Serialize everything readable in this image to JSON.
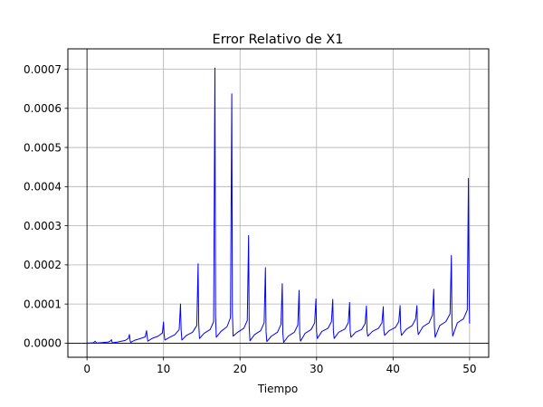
{
  "chart_data": {
    "type": "line",
    "title": "Error Relativo de X1",
    "xlabel": "Tiempo",
    "ylabel": "",
    "xlim": [
      -2.5,
      52.5
    ],
    "ylim": [
      -3.6e-05,
      0.000752
    ],
    "grid": true,
    "legend": "none",
    "x_ticks": [
      0,
      10,
      20,
      30,
      40,
      50
    ],
    "x_tick_labels": [
      "0",
      "10",
      "20",
      "30",
      "40",
      "50"
    ],
    "y_ticks": [
      0,
      0.0001,
      0.0002,
      0.0003,
      0.0004,
      0.0005,
      0.0006,
      0.0007
    ],
    "y_tick_labels": [
      "0.0000",
      "0.0001",
      "0.0002",
      "0.0003",
      "0.0004",
      "0.0005",
      "0.0006",
      "0.0007"
    ],
    "series": [
      {
        "color": "#0000ff",
        "x": [
          0.0,
          0.8,
          0.95,
          1.05,
          1.15,
          1.25,
          2.0,
          2.8,
          3.1,
          3.2,
          3.25,
          3.35,
          4.0,
          5.0,
          5.4,
          5.55,
          5.62,
          5.7,
          6.3,
          7.0,
          7.6,
          7.78,
          7.85,
          7.95,
          8.5,
          9.3,
          9.85,
          10.0,
          10.08,
          10.18,
          10.8,
          11.5,
          12.05,
          12.22,
          12.3,
          12.4,
          13.0,
          13.8,
          14.35,
          14.52,
          14.6,
          14.7,
          15.3,
          16.1,
          16.55,
          16.72,
          16.8,
          16.9,
          17.5,
          18.3,
          18.75,
          18.92,
          19.0,
          19.1,
          19.7,
          20.5,
          20.95,
          21.12,
          21.2,
          21.3,
          21.9,
          22.7,
          23.15,
          23.32,
          23.4,
          23.5,
          24.1,
          24.9,
          25.35,
          25.52,
          25.6,
          25.7,
          26.3,
          27.1,
          27.55,
          27.72,
          27.8,
          27.9,
          28.5,
          29.3,
          29.75,
          29.92,
          30.0,
          30.1,
          30.7,
          31.5,
          31.95,
          32.12,
          32.2,
          32.3,
          32.9,
          33.7,
          34.15,
          34.32,
          34.4,
          34.5,
          35.1,
          35.9,
          36.35,
          36.52,
          36.6,
          36.7,
          37.3,
          38.1,
          38.55,
          38.72,
          38.8,
          38.9,
          39.5,
          40.3,
          40.75,
          40.92,
          41.0,
          41.1,
          41.7,
          42.5,
          42.95,
          43.12,
          43.2,
          43.3,
          43.9,
          44.7,
          45.15,
          45.32,
          45.4,
          45.5,
          46.1,
          46.9,
          47.45,
          47.62,
          47.7,
          47.8,
          48.4,
          49.2,
          49.7,
          49.85,
          49.92,
          50.0
        ],
        "values": [
          0.0,
          1e-06,
          3e-06,
          5e-06,
          3e-06,
          5e-07,
          1.5e-06,
          3e-06,
          6e-06,
          9e-06,
          4e-06,
          1e-06,
          3e-06,
          7e-06,
          1.2e-05,
          2.2e-05,
          8e-06,
          2e-06,
          8e-06,
          1.2e-05,
          1.6e-05,
          3.2e-05,
          2e-05,
          5e-06,
          1.2e-05,
          1.8e-05,
          2.6e-05,
          5.4e-05,
          2.2e-05,
          8e-06,
          1.5e-05,
          2.2e-05,
          3.5e-05,
          0.0001,
          3.5e-05,
          8e-06,
          2e-05,
          2.8e-05,
          4.5e-05,
          0.000203,
          5e-05,
          1.2e-05,
          2.5e-05,
          3.5e-05,
          5.5e-05,
          0.000703,
          7e-05,
          1.5e-05,
          3e-05,
          4.2e-05,
          6.5e-05,
          0.000637,
          8e-05,
          1.8e-05,
          2.8e-05,
          3.8e-05,
          5.8e-05,
          0.000275,
          4e-05,
          6e-06,
          2.2e-05,
          3.2e-05,
          5.2e-05,
          0.000193,
          3e-05,
          4e-06,
          1.8e-05,
          2.8e-05,
          4.8e-05,
          0.000152,
          2.5e-05,
          2e-06,
          1.8e-05,
          2.8e-05,
          4.6e-05,
          0.000135,
          2.5e-05,
          5e-06,
          2.5e-05,
          3.5e-05,
          5.2e-05,
          0.000113,
          3e-05,
          1.2e-05,
          3e-05,
          3.8e-05,
          5.5e-05,
          0.000112,
          3.2e-05,
          1.2e-05,
          2.8e-05,
          3.6e-05,
          5.2e-05,
          0.000104,
          3e-05,
          1.5e-05,
          2.8e-05,
          3.5e-05,
          5e-05,
          9.5e-05,
          3e-05,
          1.8e-05,
          3e-05,
          3.8e-05,
          5.2e-05,
          9.3e-05,
          3.2e-05,
          2e-05,
          3.2e-05,
          4e-05,
          5.5e-05,
          9.6e-05,
          3.5e-05,
          2e-05,
          3.5e-05,
          4.5e-05,
          6.2e-05,
          9.6e-05,
          3.8e-05,
          2.2e-05,
          4.2e-05,
          5.2e-05,
          7.2e-05,
          0.000138,
          4.5e-05,
          1.5e-05,
          4.5e-05,
          5.5e-05,
          7.5e-05,
          0.000224,
          5e-05,
          1.8e-05,
          5.2e-05,
          6.2e-05,
          8.5e-05,
          0.000421,
          0.00015,
          5e-05
        ]
      }
    ]
  }
}
